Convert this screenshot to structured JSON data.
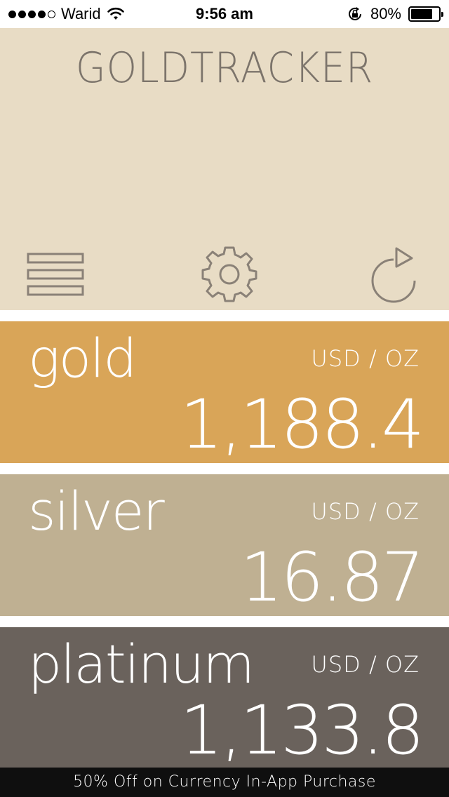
{
  "status_bar": {
    "carrier": "Warid",
    "time": "9:56 am",
    "battery_percent": "80%",
    "battery_level": 0.8,
    "signal_bars_filled": 4,
    "signal_bars_total": 5,
    "icons": [
      "wifi-icon",
      "rotation-lock-icon",
      "battery-icon"
    ]
  },
  "header": {
    "title": "GOLDTRACKER",
    "background_color": "#e8dcc5",
    "toolbar": {
      "menu_icon": "menu-icon",
      "settings_icon": "gear-icon",
      "refresh_icon": "refresh-icon"
    }
  },
  "metals": {
    "gold": {
      "name": "gold",
      "unit": "USD / OZ",
      "price": "1,188.4",
      "color": "#d9a558"
    },
    "silver": {
      "name": "silver",
      "unit": "USD / OZ",
      "price": "16.87",
      "color": "#bfb092"
    },
    "platinum": {
      "name": "platinum",
      "unit": "USD / OZ",
      "price": "1,133.8",
      "color": "#6a625c"
    }
  },
  "banner": {
    "text": "50% Off on Currency In-App Purchase"
  }
}
